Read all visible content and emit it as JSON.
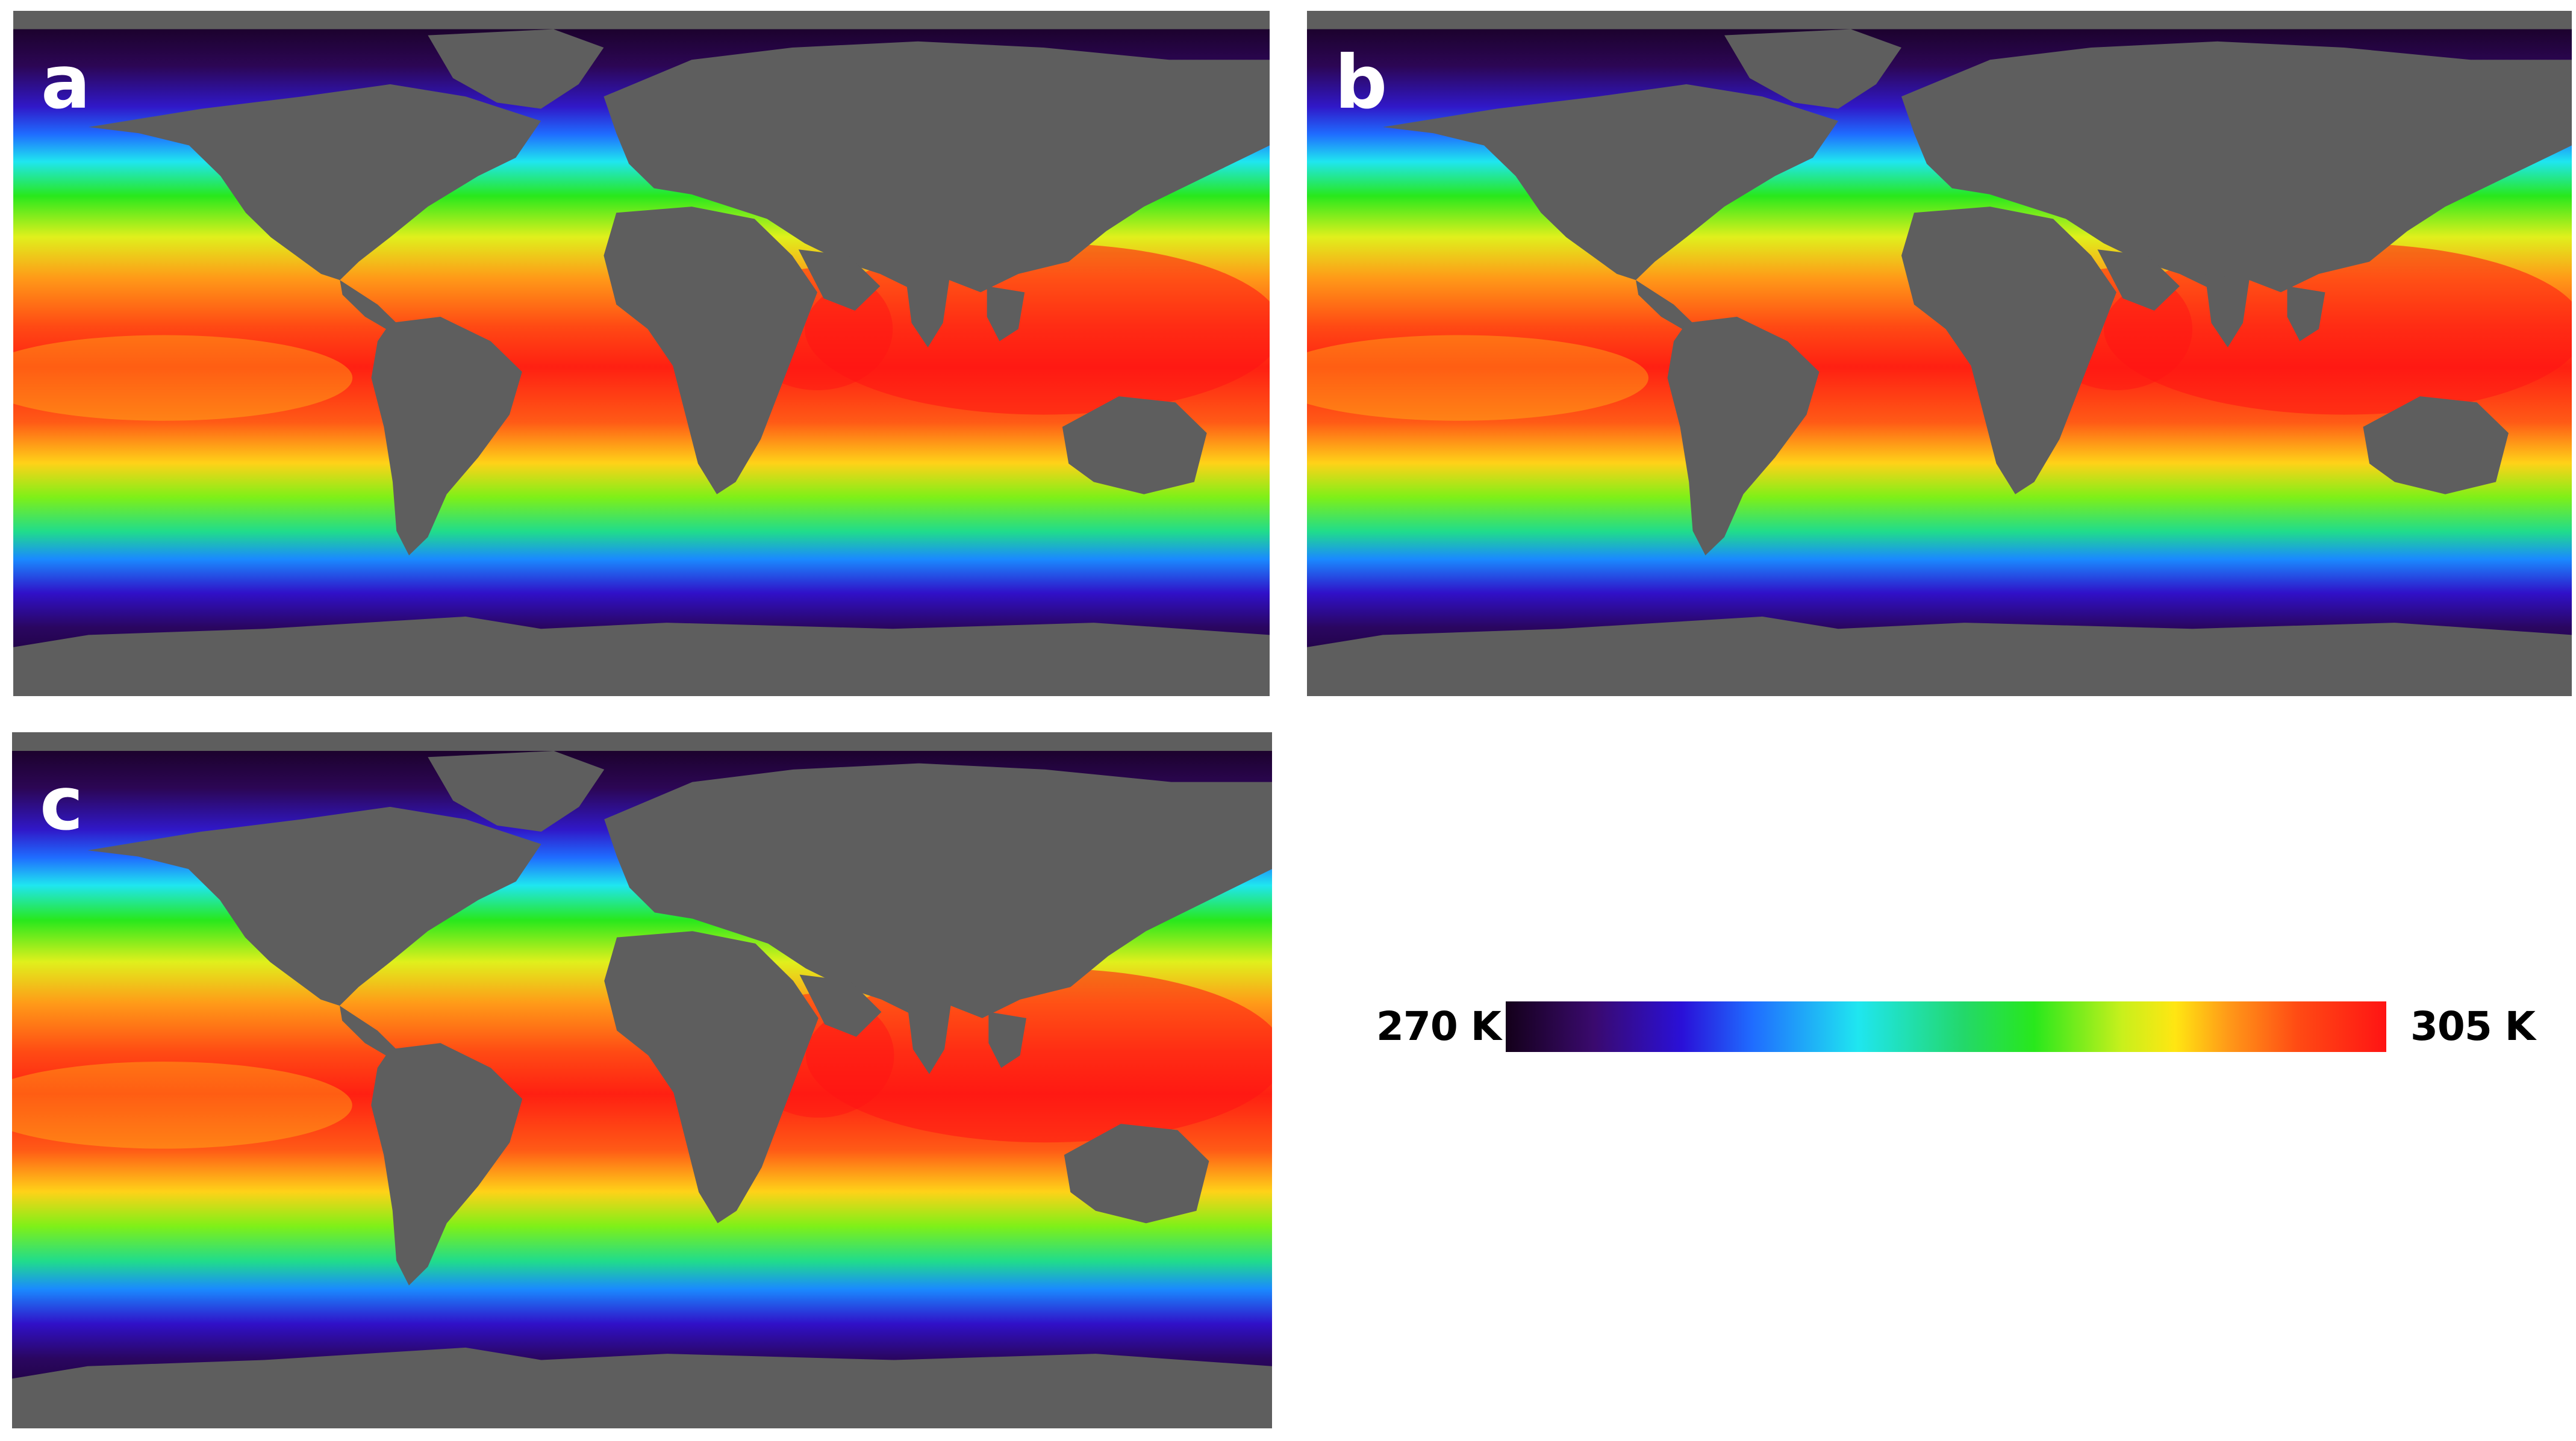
{
  "panels": [
    {
      "id": "a",
      "label": "a"
    },
    {
      "id": "b",
      "label": "b"
    },
    {
      "id": "c",
      "label": "c"
    }
  ],
  "colorbar": {
    "min_label": "270 K",
    "max_label": "305 K",
    "min_value": 270,
    "max_value": 305,
    "unit": "K",
    "stops": [
      "#14001a",
      "#3a0a6e",
      "#2a10d8",
      "#1f6cff",
      "#1fe6f0",
      "#23d86a",
      "#28e81c",
      "#c8f01c",
      "#ffe612",
      "#ff9a18",
      "#ff4a14",
      "#ff1414"
    ]
  },
  "colors": {
    "land": "#5e5e5e",
    "polar_ocean": "#1a0326",
    "background": "#ffffff"
  }
}
